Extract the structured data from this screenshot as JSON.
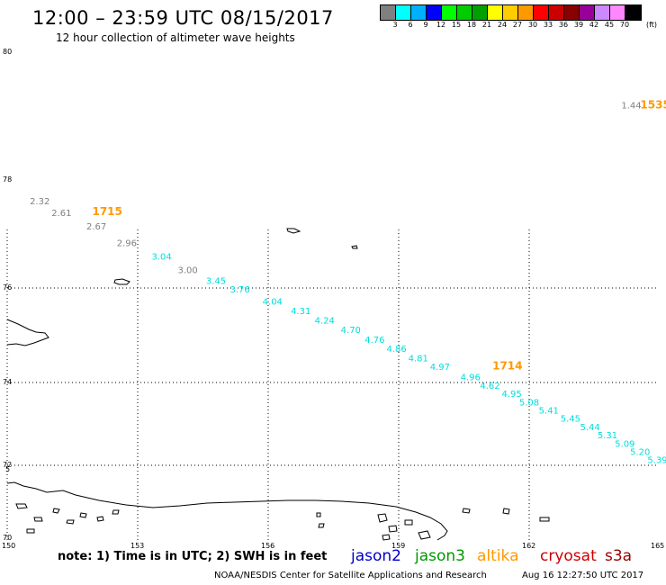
{
  "header": {
    "title": "12:00 – 23:59 UTC 08/15/2017",
    "subtitle": "12 hour collection of altimeter wave heights"
  },
  "colorbar": {
    "colors": [
      "#808080",
      "#00ffff",
      "#00b0ff",
      "#0000ff",
      "#00ff00",
      "#00cc00",
      "#00a000",
      "#ffff00",
      "#ffcc00",
      "#ff9900",
      "#ff0000",
      "#cc0000",
      "#880000",
      "#990099",
      "#cc88ff",
      "#ff88ff",
      "#000000"
    ],
    "labels": [
      "3",
      "6",
      "9",
      "12",
      "15",
      "18",
      "21",
      "24",
      "27",
      "30",
      "33",
      "36",
      "39",
      "42",
      "45",
      "70"
    ],
    "unit": "(ft)"
  },
  "axes": {
    "lon_labels": [
      "150",
      "153",
      "156",
      "159",
      "162",
      "165"
    ],
    "lat_labels": [
      "80",
      "78",
      "76",
      "74",
      "72",
      "70"
    ],
    "extra_left_label": "5"
  },
  "tracks": [
    {
      "satellite": "altika",
      "color": "#808080",
      "time": "1715",
      "time_color": "#ff9900",
      "points": [
        {
          "lon": 150.75,
          "lat": 77.4,
          "swh": "2.32"
        },
        {
          "lon": 151.25,
          "lat": 77.2,
          "swh": "2.61"
        },
        {
          "lon": 152.05,
          "lat": 76.98,
          "swh": "2.67"
        },
        {
          "lon": 152.75,
          "lat": 76.7,
          "swh": "2.96"
        },
        {
          "lon": 154.15,
          "lat": 76.25,
          "swh": "3.00"
        }
      ],
      "time_pos": {
        "lon": 152.3,
        "lat": 77.22
      }
    },
    {
      "satellite": "jason3-cyan",
      "color": "#00dddd",
      "time": "1714",
      "time_color": "#ff9900",
      "points": [
        {
          "lon": 153.55,
          "lat": 76.47,
          "swh": "3.04"
        },
        {
          "lon": 154.8,
          "lat": 76.07,
          "swh": "3.45"
        },
        {
          "lon": 155.35,
          "lat": 75.9,
          "swh": "3.76"
        },
        {
          "lon": 156.1,
          "lat": 75.65,
          "swh": "4.04"
        },
        {
          "lon": 156.75,
          "lat": 75.45,
          "swh": "4.31"
        },
        {
          "lon": 157.3,
          "lat": 75.25,
          "swh": "4.24"
        },
        {
          "lon": 157.9,
          "lat": 75.05,
          "swh": "4.70"
        },
        {
          "lon": 158.45,
          "lat": 74.84,
          "swh": "4.76"
        },
        {
          "lon": 158.95,
          "lat": 74.65,
          "swh": "4.86"
        },
        {
          "lon": 159.45,
          "lat": 74.45,
          "swh": "4.81"
        },
        {
          "lon": 159.95,
          "lat": 74.27,
          "swh": "4.97"
        },
        {
          "lon": 160.65,
          "lat": 74.05,
          "swh": "4.96"
        },
        {
          "lon": 161.1,
          "lat": 73.85,
          "swh": "4.62"
        },
        {
          "lon": 161.6,
          "lat": 73.65,
          "swh": "4.95"
        },
        {
          "lon": 162.0,
          "lat": 73.45,
          "swh": "5.08"
        },
        {
          "lon": 162.45,
          "lat": 73.25,
          "swh": "5.41"
        },
        {
          "lon": 162.95,
          "lat": 73.05,
          "swh": "5.45"
        },
        {
          "lon": 163.4,
          "lat": 72.85,
          "swh": "5.44"
        },
        {
          "lon": 163.8,
          "lat": 72.65,
          "swh": "5.31"
        },
        {
          "lon": 164.2,
          "lat": 72.45,
          "swh": "5.09"
        },
        {
          "lon": 164.55,
          "lat": 72.25,
          "swh": "5.20"
        },
        {
          "lon": 164.95,
          "lat": 72.05,
          "swh": "5.39"
        }
      ],
      "time_pos": {
        "lon": 161.5,
        "lat": 74.28
      }
    },
    {
      "satellite": "other",
      "color": "#808080",
      "time": "1535",
      "time_color": "#ff9900",
      "points": [
        {
          "lon": 164.35,
          "lat": 79.0,
          "swh": "1.44"
        }
      ],
      "time_pos": {
        "lon": 164.9,
        "lat": 79.0
      }
    }
  ],
  "footer": {
    "note": "note:  1) Time is in UTC;  2) SWH is in feet",
    "satellites": [
      {
        "name": "jason2",
        "color": "#0000cc"
      },
      {
        "name": "jason3",
        "color": "#009900"
      },
      {
        "name": "altika",
        "color": "#ff9900"
      },
      {
        "name": "cryosat",
        "color": "#cc0000"
      },
      {
        "name": "s3a",
        "color": "#990000"
      }
    ],
    "credit": "NOAA/NESDIS Center for Satellite Applications and Research",
    "timestamp": "Aug 16 12:27:50 UTC 2017"
  }
}
